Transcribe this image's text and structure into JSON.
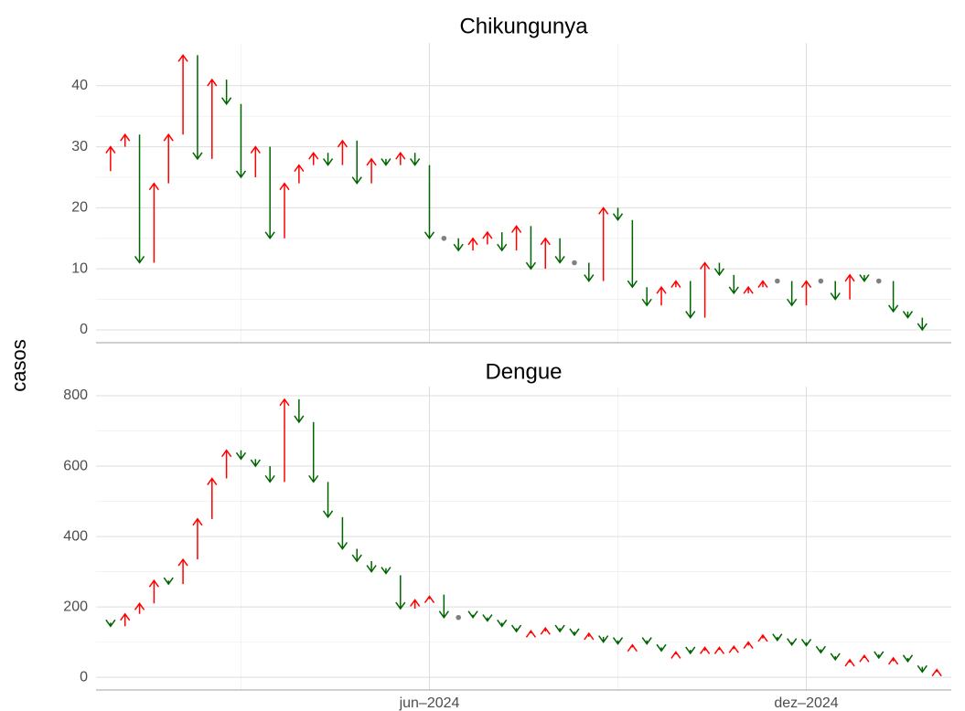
{
  "chart_data": {
    "type": "arrow",
    "y_label": "casos",
    "categories": [
      null,
      null,
      null,
      null,
      null,
      null,
      null,
      null,
      null,
      null,
      null,
      null,
      null,
      null,
      null,
      null,
      null,
      null,
      null,
      null,
      null,
      null,
      "jun–2024",
      null,
      null,
      null,
      null,
      null,
      null,
      null,
      null,
      null,
      null,
      null,
      null,
      null,
      null,
      null,
      null,
      null,
      null,
      null,
      null,
      null,
      null,
      null,
      null,
      null,
      "dez–2024",
      null,
      null,
      null,
      null,
      null,
      null,
      null,
      null,
      null
    ],
    "up_color": "#ff0000",
    "down_color": "#006400",
    "flat_color": "#808080",
    "grid": true,
    "facets": [
      {
        "title": "Chikungunya",
        "ylim": [
          -2.1,
          47
        ],
        "yticks": [
          0,
          10,
          20,
          30,
          40
        ],
        "from": [
          26,
          30,
          32,
          11,
          24,
          32,
          45,
          28,
          41,
          37,
          25,
          30,
          15,
          24,
          27,
          29,
          27,
          31,
          24,
          28,
          27,
          29,
          27,
          15,
          15,
          13,
          14,
          16,
          13,
          17,
          10,
          15,
          11,
          11,
          8,
          20,
          18,
          7,
          4,
          7,
          8,
          2,
          11,
          9,
          6,
          7,
          8,
          8,
          4,
          8,
          8,
          5,
          9,
          8,
          8,
          3,
          2,
          null
        ],
        "to": [
          30,
          32,
          11,
          24,
          32,
          45,
          28,
          41,
          37,
          25,
          30,
          15,
          24,
          27,
          29,
          27,
          31,
          24,
          28,
          27,
          29,
          27,
          15,
          15,
          13,
          15,
          16,
          13,
          17,
          10,
          15,
          11,
          11,
          8,
          20,
          18,
          7,
          4,
          7,
          8,
          2,
          11,
          9,
          6,
          7,
          8,
          8,
          4,
          8,
          8,
          5,
          9,
          8,
          8,
          3,
          2,
          0,
          null
        ]
      },
      {
        "title": "Dengue",
        "ylim": [
          -36,
          826
        ],
        "yticks": [
          0,
          200,
          400,
          600,
          800
        ],
        "from": [
          155,
          145,
          180,
          210,
          275,
          265,
          335,
          450,
          565,
          645,
          620,
          600,
          555,
          790,
          725,
          555,
          455,
          365,
          330,
          310,
          290,
          195,
          222,
          235,
          170,
          178,
          170,
          155,
          140,
          125,
          130,
          140,
          130,
          115,
          115,
          105,
          85,
          105,
          85,
          65,
          78,
          75,
          78,
          80,
          90,
          110,
          115,
          100,
          100,
          80,
          60,
          42,
          55,
          65,
          45,
          55,
          30,
          15
        ],
        "to": [
          145,
          180,
          210,
          275,
          265,
          335,
          450,
          565,
          645,
          620,
          600,
          555,
          790,
          725,
          555,
          455,
          365,
          330,
          300,
          295,
          195,
          220,
          230,
          170,
          170,
          170,
          160,
          145,
          130,
          132,
          140,
          130,
          120,
          125,
          100,
          95,
          92,
          95,
          75,
          72,
          68,
          85,
          85,
          88,
          100,
          120,
          105,
          92,
          90,
          70,
          50,
          50,
          62,
          55,
          55,
          45,
          15,
          22
        ]
      }
    ]
  }
}
